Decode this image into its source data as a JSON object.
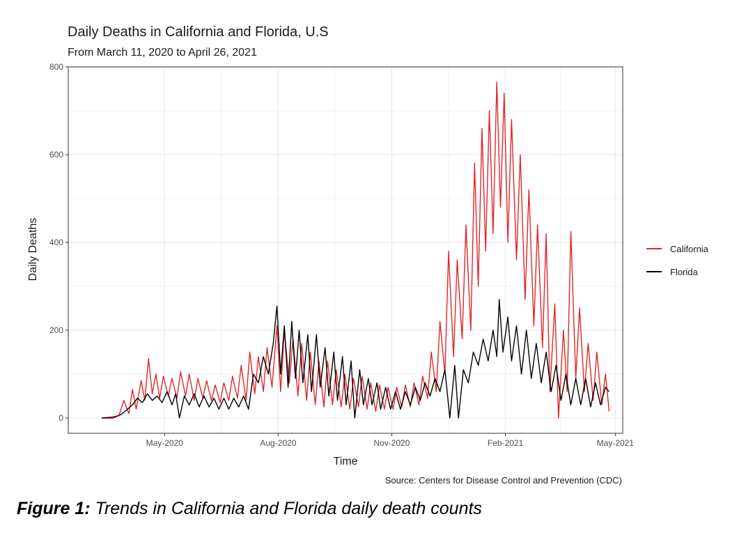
{
  "chart_data": {
    "type": "line",
    "title": "Daily Deaths in California and Florida, U.S",
    "subtitle": "From March 11, 2020 to April 26, 2021",
    "xlabel": "Time",
    "ylabel": "Daily Deaths",
    "caption": "Source: Centers for Disease Control and Prevention (CDC)",
    "x_ticks": [
      "May-2020",
      "Aug-2020",
      "Nov-2020",
      "Feb-2021",
      "May-2021"
    ],
    "x_tick_dates": [
      "2020-05-01",
      "2020-08-01",
      "2020-11-01",
      "2021-02-01",
      "2021-05-01"
    ],
    "xlim": [
      "2020-02-13",
      "2021-05-07"
    ],
    "y_ticks": [
      0,
      200,
      400,
      600,
      800
    ],
    "ylim": [
      -35,
      800
    ],
    "grid": true,
    "legend_position": "right",
    "series": [
      {
        "name": "California",
        "color": "#e0262b",
        "points": [
          [
            "2020-03-11",
            0
          ],
          [
            "2020-03-18",
            2
          ],
          [
            "2020-03-25",
            5
          ],
          [
            "2020-03-29",
            40
          ],
          [
            "2020-04-02",
            10
          ],
          [
            "2020-04-05",
            65
          ],
          [
            "2020-04-08",
            20
          ],
          [
            "2020-04-12",
            85
          ],
          [
            "2020-04-15",
            40
          ],
          [
            "2020-04-18",
            135
          ],
          [
            "2020-04-21",
            55
          ],
          [
            "2020-04-24",
            100
          ],
          [
            "2020-04-27",
            45
          ],
          [
            "2020-04-30",
            95
          ],
          [
            "2020-05-04",
            50
          ],
          [
            "2020-05-07",
            90
          ],
          [
            "2020-05-11",
            45
          ],
          [
            "2020-05-14",
            105
          ],
          [
            "2020-05-18",
            50
          ],
          [
            "2020-05-21",
            100
          ],
          [
            "2020-05-25",
            40
          ],
          [
            "2020-05-28",
            90
          ],
          [
            "2020-06-01",
            45
          ],
          [
            "2020-06-04",
            85
          ],
          [
            "2020-06-08",
            40
          ],
          [
            "2020-06-11",
            75
          ],
          [
            "2020-06-15",
            35
          ],
          [
            "2020-06-18",
            80
          ],
          [
            "2020-06-22",
            40
          ],
          [
            "2020-06-25",
            95
          ],
          [
            "2020-06-29",
            45
          ],
          [
            "2020-07-02",
            120
          ],
          [
            "2020-07-06",
            40
          ],
          [
            "2020-07-09",
            150
          ],
          [
            "2020-07-13",
            55
          ],
          [
            "2020-07-16",
            140
          ],
          [
            "2020-07-20",
            60
          ],
          [
            "2020-07-23",
            160
          ],
          [
            "2020-07-27",
            70
          ],
          [
            "2020-07-31",
            210
          ],
          [
            "2020-08-03",
            60
          ],
          [
            "2020-08-06",
            200
          ],
          [
            "2020-08-10",
            80
          ],
          [
            "2020-08-13",
            180
          ],
          [
            "2020-08-17",
            50
          ],
          [
            "2020-08-20",
            170
          ],
          [
            "2020-08-24",
            40
          ],
          [
            "2020-08-27",
            150
          ],
          [
            "2020-08-31",
            30
          ],
          [
            "2020-09-03",
            130
          ],
          [
            "2020-09-07",
            25
          ],
          [
            "2020-09-10",
            130
          ],
          [
            "2020-09-14",
            30
          ],
          [
            "2020-09-17",
            110
          ],
          [
            "2020-09-21",
            25
          ],
          [
            "2020-09-24",
            100
          ],
          [
            "2020-09-28",
            20
          ],
          [
            "2020-10-01",
            90
          ],
          [
            "2020-10-05",
            25
          ],
          [
            "2020-10-08",
            95
          ],
          [
            "2020-10-12",
            20
          ],
          [
            "2020-10-15",
            80
          ],
          [
            "2020-10-19",
            15
          ],
          [
            "2020-10-22",
            75
          ],
          [
            "2020-10-26",
            20
          ],
          [
            "2020-10-29",
            70
          ],
          [
            "2020-11-02",
            20
          ],
          [
            "2020-11-05",
            70
          ],
          [
            "2020-11-09",
            25
          ],
          [
            "2020-11-12",
            75
          ],
          [
            "2020-11-16",
            25
          ],
          [
            "2020-11-19",
            80
          ],
          [
            "2020-11-23",
            30
          ],
          [
            "2020-11-26",
            95
          ],
          [
            "2020-11-30",
            45
          ],
          [
            "2020-12-03",
            150
          ],
          [
            "2020-12-07",
            60
          ],
          [
            "2020-12-10",
            220
          ],
          [
            "2020-12-14",
            100
          ],
          [
            "2020-12-17",
            380
          ],
          [
            "2020-12-21",
            140
          ],
          [
            "2020-12-24",
            360
          ],
          [
            "2020-12-28",
            180
          ],
          [
            "2020-12-31",
            440
          ],
          [
            "2021-01-04",
            200
          ],
          [
            "2021-01-07",
            580
          ],
          [
            "2021-01-10",
            300
          ],
          [
            "2021-01-13",
            660
          ],
          [
            "2021-01-16",
            380
          ],
          [
            "2021-01-19",
            700
          ],
          [
            "2021-01-22",
            420
          ],
          [
            "2021-01-25",
            765
          ],
          [
            "2021-01-28",
            480
          ],
          [
            "2021-01-31",
            740
          ],
          [
            "2021-02-03",
            400
          ],
          [
            "2021-02-06",
            680
          ],
          [
            "2021-02-10",
            360
          ],
          [
            "2021-02-13",
            600
          ],
          [
            "2021-02-17",
            270
          ],
          [
            "2021-02-20",
            520
          ],
          [
            "2021-02-24",
            210
          ],
          [
            "2021-02-27",
            440
          ],
          [
            "2021-03-03",
            160
          ],
          [
            "2021-03-06",
            420
          ],
          [
            "2021-03-09",
            60
          ],
          [
            "2021-03-13",
            260
          ],
          [
            "2021-03-16",
            0
          ],
          [
            "2021-03-20",
            200
          ],
          [
            "2021-03-23",
            60
          ],
          [
            "2021-03-26",
            425
          ],
          [
            "2021-03-30",
            90
          ],
          [
            "2021-04-02",
            250
          ],
          [
            "2021-04-06",
            60
          ],
          [
            "2021-04-09",
            170
          ],
          [
            "2021-04-13",
            40
          ],
          [
            "2021-04-16",
            150
          ],
          [
            "2021-04-20",
            30
          ],
          [
            "2021-04-23",
            100
          ],
          [
            "2021-04-26",
            15
          ]
        ]
      },
      {
        "name": "Florida",
        "color": "#000000",
        "points": [
          [
            "2020-03-11",
            0
          ],
          [
            "2020-03-20",
            0
          ],
          [
            "2020-03-27",
            8
          ],
          [
            "2020-04-01",
            20
          ],
          [
            "2020-04-05",
            30
          ],
          [
            "2020-04-09",
            45
          ],
          [
            "2020-04-13",
            35
          ],
          [
            "2020-04-17",
            55
          ],
          [
            "2020-04-21",
            40
          ],
          [
            "2020-04-25",
            50
          ],
          [
            "2020-04-29",
            35
          ],
          [
            "2020-05-03",
            60
          ],
          [
            "2020-05-07",
            30
          ],
          [
            "2020-05-10",
            55
          ],
          [
            "2020-05-13",
            0
          ],
          [
            "2020-05-17",
            50
          ],
          [
            "2020-05-21",
            30
          ],
          [
            "2020-05-25",
            55
          ],
          [
            "2020-05-29",
            25
          ],
          [
            "2020-06-02",
            50
          ],
          [
            "2020-06-06",
            25
          ],
          [
            "2020-06-10",
            45
          ],
          [
            "2020-06-14",
            20
          ],
          [
            "2020-06-18",
            45
          ],
          [
            "2020-06-22",
            20
          ],
          [
            "2020-06-26",
            45
          ],
          [
            "2020-06-30",
            25
          ],
          [
            "2020-07-04",
            50
          ],
          [
            "2020-07-08",
            20
          ],
          [
            "2020-07-12",
            100
          ],
          [
            "2020-07-16",
            80
          ],
          [
            "2020-07-20",
            140
          ],
          [
            "2020-07-24",
            100
          ],
          [
            "2020-07-28",
            170
          ],
          [
            "2020-07-31",
            255
          ],
          [
            "2020-08-03",
            100
          ],
          [
            "2020-08-06",
            210
          ],
          [
            "2020-08-09",
            70
          ],
          [
            "2020-08-12",
            220
          ],
          [
            "2020-08-15",
            90
          ],
          [
            "2020-08-18",
            200
          ],
          [
            "2020-08-21",
            80
          ],
          [
            "2020-08-25",
            190
          ],
          [
            "2020-08-28",
            60
          ],
          [
            "2020-09-01",
            190
          ],
          [
            "2020-09-04",
            70
          ],
          [
            "2020-09-08",
            160
          ],
          [
            "2020-09-11",
            50
          ],
          [
            "2020-09-15",
            150
          ],
          [
            "2020-09-18",
            40
          ],
          [
            "2020-09-22",
            140
          ],
          [
            "2020-09-25",
            30
          ],
          [
            "2020-09-29",
            130
          ],
          [
            "2020-10-02",
            0
          ],
          [
            "2020-10-06",
            110
          ],
          [
            "2020-10-09",
            30
          ],
          [
            "2020-10-13",
            90
          ],
          [
            "2020-10-16",
            30
          ],
          [
            "2020-10-20",
            80
          ],
          [
            "2020-10-23",
            20
          ],
          [
            "2020-10-27",
            70
          ],
          [
            "2020-10-31",
            20
          ],
          [
            "2020-11-04",
            60
          ],
          [
            "2020-11-08",
            20
          ],
          [
            "2020-11-12",
            60
          ],
          [
            "2020-11-16",
            30
          ],
          [
            "2020-11-20",
            70
          ],
          [
            "2020-11-24",
            40
          ],
          [
            "2020-11-28",
            80
          ],
          [
            "2020-12-02",
            50
          ],
          [
            "2020-12-06",
            90
          ],
          [
            "2020-12-10",
            60
          ],
          [
            "2020-12-14",
            110
          ],
          [
            "2020-12-18",
            0
          ],
          [
            "2020-12-22",
            120
          ],
          [
            "2020-12-25",
            0
          ],
          [
            "2020-12-29",
            110
          ],
          [
            "2021-01-02",
            80
          ],
          [
            "2021-01-06",
            150
          ],
          [
            "2021-01-10",
            120
          ],
          [
            "2021-01-14",
            180
          ],
          [
            "2021-01-18",
            130
          ],
          [
            "2021-01-22",
            200
          ],
          [
            "2021-01-25",
            140
          ],
          [
            "2021-01-27",
            270
          ],
          [
            "2021-01-30",
            150
          ],
          [
            "2021-02-03",
            230
          ],
          [
            "2021-02-06",
            130
          ],
          [
            "2021-02-10",
            210
          ],
          [
            "2021-02-14",
            100
          ],
          [
            "2021-02-18",
            200
          ],
          [
            "2021-02-22",
            90
          ],
          [
            "2021-02-26",
            170
          ],
          [
            "2021-03-02",
            80
          ],
          [
            "2021-03-06",
            150
          ],
          [
            "2021-03-10",
            60
          ],
          [
            "2021-03-14",
            120
          ],
          [
            "2021-03-18",
            40
          ],
          [
            "2021-03-22",
            100
          ],
          [
            "2021-03-26",
            30
          ],
          [
            "2021-03-30",
            90
          ],
          [
            "2021-04-03",
            30
          ],
          [
            "2021-04-07",
            90
          ],
          [
            "2021-04-11",
            25
          ],
          [
            "2021-04-15",
            80
          ],
          [
            "2021-04-19",
            30
          ],
          [
            "2021-04-23",
            70
          ],
          [
            "2021-04-26",
            60
          ]
        ]
      }
    ]
  },
  "figure_caption": {
    "label": "Figure 1:",
    "text": " Trends in California and Florida daily death counts"
  }
}
